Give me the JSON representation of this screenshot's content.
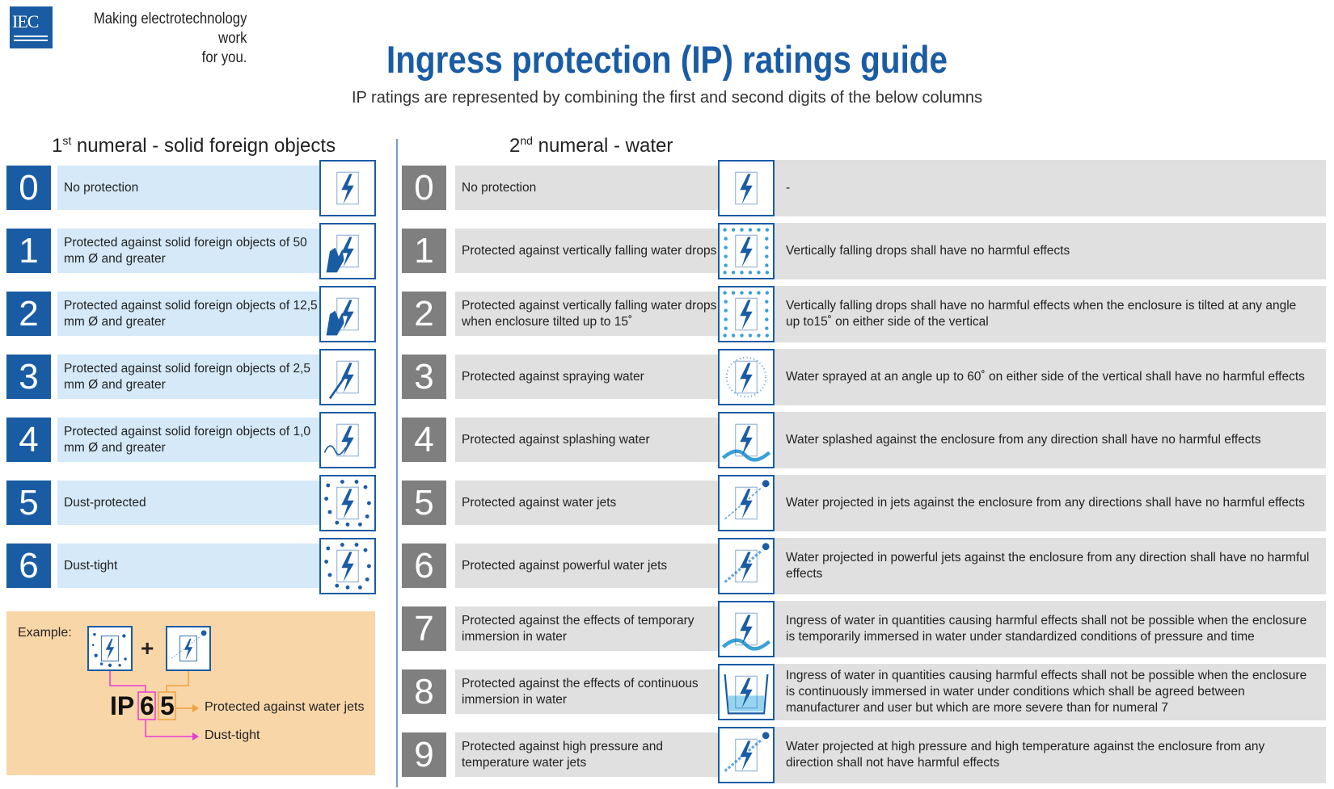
{
  "header": {
    "logo_text": "IEC",
    "tagline_line1": "Making  electrotechnology work",
    "tagline_line2": "for you.",
    "title": "Ingress protection (IP) ratings guide",
    "subtitle": "IP ratings are represented by combining the first and second digits of the below columns"
  },
  "first_numeral": {
    "heading_num": "1",
    "heading_sup": "st",
    "heading_text": " numeral - solid foreign objects",
    "accent": "#1a5ca4",
    "rows": [
      {
        "digit": "0",
        "text": "No protection",
        "icon": "lightning-icon"
      },
      {
        "digit": "1",
        "text": "Protected against solid foreign objects of 50 mm Ø and greater",
        "icon": "hand-icon"
      },
      {
        "digit": "2",
        "text": "Protected against solid foreign objects of 12,5 mm Ø and greater",
        "icon": "finger-icon"
      },
      {
        "digit": "3",
        "text": "Protected against solid foreign objects of 2,5 mm Ø and greater",
        "icon": "tool-icon"
      },
      {
        "digit": "4",
        "text": "Protected against solid foreign objects of 1,0 mm Ø and greater",
        "icon": "wire-icon"
      },
      {
        "digit": "5",
        "text": "Dust-protected",
        "icon": "dust-icon"
      },
      {
        "digit": "6",
        "text": "Dust-tight",
        "icon": "dust-tight-icon"
      }
    ]
  },
  "second_numeral": {
    "heading_num": "2",
    "heading_sup": "nd",
    "heading_text": " numeral - water",
    "accent": "#7f7f7f",
    "rows": [
      {
        "digit": "0",
        "text": "No protection",
        "desc": "-",
        "icon": "lightning-icon"
      },
      {
        "digit": "1",
        "text": "Protected against vertically falling water drops",
        "desc": "Vertically falling drops shall have no harmful effects",
        "icon": "drops-icon"
      },
      {
        "digit": "2",
        "text": "Protected against vertically falling water drops when enclosure tilted up to 15˚",
        "desc": "Vertically falling drops shall have no harmful effects when the enclosure is tilted at any angle up to15˚ on either side of the vertical",
        "icon": "tilted-drops-icon"
      },
      {
        "digit": "3",
        "text": "Protected against spraying water",
        "desc": "Water sprayed at an angle up to 60˚ on either side of the vertical shall have no harmful effects",
        "icon": "spray-icon"
      },
      {
        "digit": "4",
        "text": "Protected against splashing water",
        "desc": "Water splashed against the enclosure from any direction shall have no harmful effects",
        "icon": "splash-icon"
      },
      {
        "digit": "5",
        "text": "Protected against water jets",
        "desc": "Water projected in jets against the enclosure from any directions shall have no harmful effects",
        "icon": "jet-icon"
      },
      {
        "digit": "6",
        "text": "Protected against powerful water jets",
        "desc": "Water projected in powerful jets against the enclosure from any direction shall have no harmful effects",
        "icon": "powerful-jet-icon"
      },
      {
        "digit": "7",
        "text": "Protected against the effects of temporary immersion in water",
        "desc": "Ingress of water in quantities causing harmful effects shall not be possible when the enclosure is temporarily immersed in water under standardized conditions of pressure and time",
        "icon": "wave-icon"
      },
      {
        "digit": "8",
        "text": "Protected against the effects of continuous immersion in water",
        "desc": "Ingress of water in quantities causing harmful effects shall not be possible when the enclosure is continuously immersed in water under conditions which shall be agreed between manufacturer and user but which are more severe than for numeral 7",
        "icon": "immersion-icon"
      },
      {
        "digit": "9",
        "text": "Protected against high pressure and temperature water jets",
        "desc": "Water projected at high pressure and high temperature against the enclosure from any direction shall not have harmful effects",
        "icon": "high-pressure-jet-icon"
      }
    ]
  },
  "example": {
    "label": "Example:",
    "plus": "+",
    "prefix": "IP",
    "first": "6",
    "second": "5",
    "second_meaning": "Protected against water jets",
    "first_meaning": "Dust-tight",
    "first_color": "#e83ad6",
    "second_color": "#f0a040",
    "background": "#f8d6a8"
  }
}
